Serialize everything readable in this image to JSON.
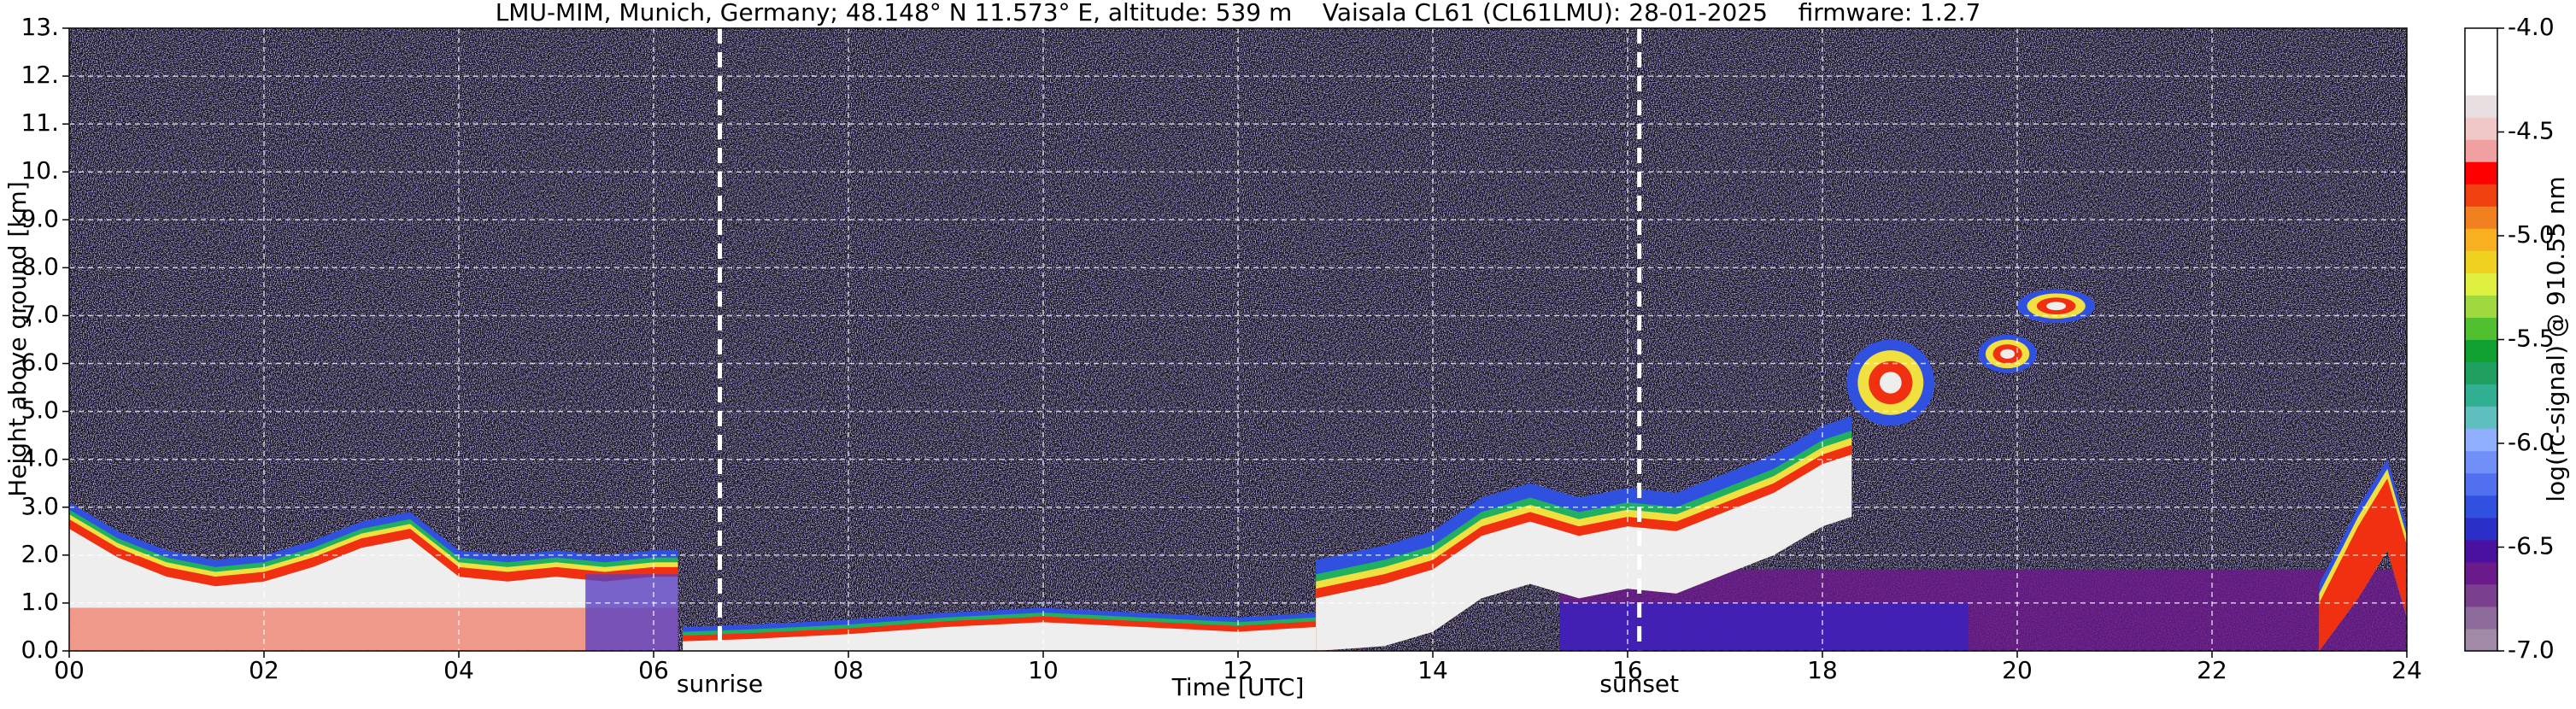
{
  "chart_data": {
    "type": "heatmap",
    "title": "LMU-MIM, Munich, Germany; 48.148° N 11.573° E, altitude: 539 m    Vaisala CL61 (CL61LMU): 28-01-2025    firmware: 1.2.7",
    "xlabel": "Time [UTC]",
    "ylabel": "Height above ground [km]",
    "xlim": [
      0,
      24
    ],
    "xticks": [
      {
        "value": 0,
        "label": "00"
      },
      {
        "value": 2,
        "label": "02"
      },
      {
        "value": 4,
        "label": "04"
      },
      {
        "value": 6,
        "label": "06"
      },
      {
        "value": 8,
        "label": "08"
      },
      10,
      12,
      14,
      16,
      18,
      20,
      22,
      24
    ],
    "ylim": [
      0,
      13
    ],
    "yticks": [
      {
        "value": 0,
        "label": "0.0"
      },
      {
        "value": 1,
        "label": "1.0"
      },
      {
        "value": 2,
        "label": "2.0"
      },
      {
        "value": 3,
        "label": "3.0"
      },
      {
        "value": 4,
        "label": "4.0"
      },
      {
        "value": 5,
        "label": "5.0"
      },
      {
        "value": 6,
        "label": "6.0"
      },
      {
        "value": 7,
        "label": "7.0"
      },
      {
        "value": 8,
        "label": "8.0"
      },
      {
        "value": 9,
        "label": "9.0"
      },
      {
        "value": 10,
        "label": "10."
      },
      {
        "value": 11,
        "label": "11."
      },
      {
        "value": 12,
        "label": "12."
      },
      {
        "value": 13,
        "label": "13."
      }
    ],
    "grid": true,
    "annotations": [
      {
        "label": "sunrise",
        "x": 6.68
      },
      {
        "label": "sunset",
        "x": 16.12
      }
    ],
    "colorbar": {
      "label": "log(rc-signal) @ 910.55 nm",
      "lim": [
        -7,
        -4
      ],
      "ticks": [
        {
          "value": -7,
          "label": "-7.0"
        },
        {
          "value": -6.5,
          "label": "-6.5"
        },
        {
          "value": -6,
          "label": "-6.0"
        },
        {
          "value": -5.5,
          "label": "-5.5"
        },
        {
          "value": -5,
          "label": "-5.0"
        },
        {
          "value": -4.5,
          "label": "-4.5"
        },
        {
          "value": -4,
          "label": "-4.0"
        }
      ],
      "colors": [
        "#a08aa6",
        "#8c6a9a",
        "#7a3f8e",
        "#6a1a8a",
        "#4a10a0",
        "#2a30c8",
        "#3050e0",
        "#5070f0",
        "#7090f8",
        "#90b0ff",
        "#60c0c0",
        "#30b090",
        "#20a060",
        "#10a030",
        "#50c030",
        "#a0d840",
        "#e0f040",
        "#f0d020",
        "#f8b020",
        "#f08020",
        "#f04010",
        "#ff0000",
        "#f0a0a0",
        "#f0c8c8",
        "#e8e0e0",
        "#ffffff",
        "#ffffff",
        "#ffffff"
      ]
    }
  }
}
